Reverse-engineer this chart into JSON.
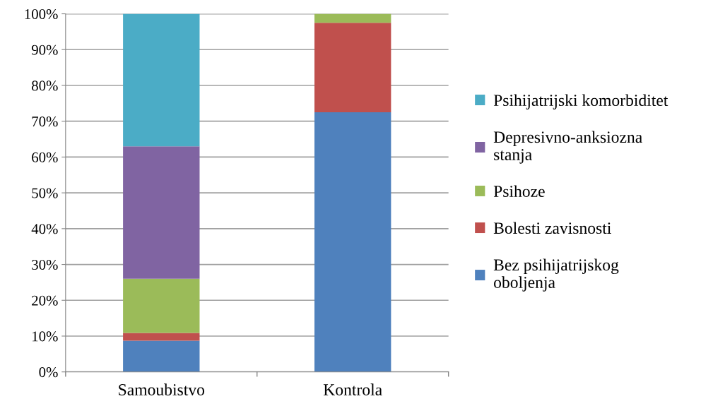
{
  "chart_data": {
    "type": "bar",
    "stacked": true,
    "categories": [
      "Samoubistvo",
      "Kontrola"
    ],
    "series": [
      {
        "name": "Bez psihijatrijskog\noboljenja",
        "color": "#4f81bd",
        "values": [
          8.7,
          72.5
        ]
      },
      {
        "name": "Bolesti zavisnosti",
        "color": "#c0504d",
        "values": [
          2.2,
          25.0
        ]
      },
      {
        "name": "Psihoze",
        "color": "#9bbb59",
        "values": [
          15.1,
          2.5
        ]
      },
      {
        "name": "Depresivno-anksiozna\nstanja",
        "color": "#8064a2",
        "values": [
          37.0,
          0
        ]
      },
      {
        "name": "Psihijatrijski komorbiditet",
        "color": "#4bacc6",
        "values": [
          37.0,
          0
        ]
      }
    ],
    "ylim": [
      0,
      100
    ],
    "yticks": [
      {
        "value": 0,
        "label": "0%"
      },
      {
        "value": 10,
        "label": "10%"
      },
      {
        "value": 20,
        "label": "20%"
      },
      {
        "value": 30,
        "label": "30%"
      },
      {
        "value": 40,
        "label": "40%"
      },
      {
        "value": 50,
        "label": "50%"
      },
      {
        "value": 60,
        "label": "60%"
      },
      {
        "value": 70,
        "label": "70%"
      },
      {
        "value": 80,
        "label": "80%"
      },
      {
        "value": 90,
        "label": "90%"
      },
      {
        "value": 100,
        "label": "100%"
      }
    ],
    "grid": "y",
    "legend": "right"
  }
}
